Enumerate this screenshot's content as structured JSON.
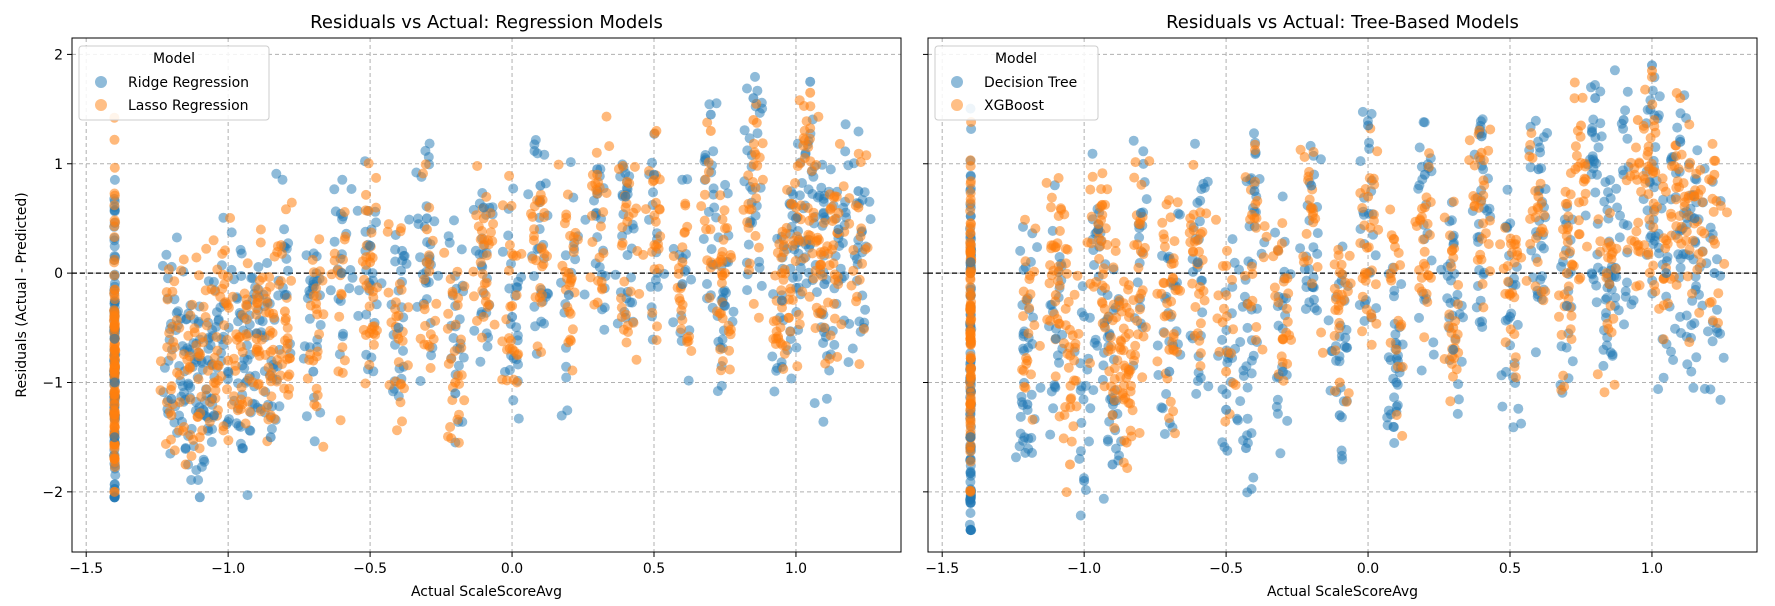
{
  "chart_data": [
    {
      "type": "scatter",
      "title": "Residuals vs Actual: Regression Models",
      "xlabel": "Actual ScaleScoreAvg",
      "ylabel": "Residuals (Actual - Predicted)",
      "xlim": [
        -1.55,
        1.37
      ],
      "ylim": [
        -2.55,
        2.15
      ],
      "xticks": [
        -1.5,
        -1.0,
        -0.5,
        0.0,
        0.5,
        1.0
      ],
      "xtick_labels": [
        "−1.5",
        "−1.0",
        "−0.5",
        "0.0",
        "0.5",
        "1.0"
      ],
      "yticks": [
        -2,
        -1,
        0,
        1,
        2
      ],
      "ytick_labels": [
        "−2",
        "−1",
        "0",
        "1",
        "2"
      ],
      "grid": true,
      "reference_line_y": 0,
      "legend": {
        "title": "Model",
        "position": "top-left"
      },
      "series": [
        {
          "name": "Ridge Regression",
          "color": "#1f77b4",
          "points": [
            [
              -1.4,
              -0.6
            ],
            [
              -1.4,
              -1.0
            ],
            [
              -1.4,
              -1.5
            ],
            [
              -1.4,
              -2.05
            ],
            [
              -1.2,
              -1.15
            ],
            [
              -1.15,
              -1.6
            ],
            [
              -1.1,
              -2.05
            ],
            [
              -1.05,
              -1.3
            ],
            [
              -1.0,
              -0.9
            ],
            [
              -0.95,
              -1.6
            ],
            [
              -0.9,
              -0.55
            ],
            [
              -0.85,
              -1.5
            ],
            [
              -0.8,
              -0.2
            ],
            [
              -0.7,
              -0.9
            ],
            [
              -0.6,
              0.0
            ],
            [
              -0.5,
              0.25
            ],
            [
              -0.4,
              -0.5
            ],
            [
              -0.3,
              0.5
            ],
            [
              -0.2,
              -1.1
            ],
            [
              -0.1,
              0.6
            ],
            [
              0.0,
              -0.4
            ],
            [
              0.1,
              0.8
            ],
            [
              0.2,
              -0.2
            ],
            [
              0.3,
              0.95
            ],
            [
              0.4,
              0.7
            ],
            [
              0.5,
              0.9
            ],
            [
              0.6,
              -0.1
            ],
            [
              0.7,
              1.45
            ],
            [
              0.75,
              -0.3
            ],
            [
              0.85,
              1.6
            ],
            [
              0.95,
              -0.25
            ],
            [
              1.0,
              0.5
            ],
            [
              1.05,
              1.75
            ],
            [
              1.1,
              -0.1
            ],
            [
              1.15,
              0.4
            ],
            [
              1.22,
              0.75
            ]
          ]
        },
        {
          "name": "Lasso Regression",
          "color": "#ff7f0e",
          "points": [
            [
              -1.4,
              -0.7
            ],
            [
              -1.4,
              -1.2
            ],
            [
              -1.4,
              -1.7
            ],
            [
              -1.4,
              -2.0
            ],
            [
              -1.2,
              -1.3
            ],
            [
              -1.15,
              -1.75
            ],
            [
              -1.1,
              -1.5
            ],
            [
              -1.05,
              -1.0
            ],
            [
              -1.0,
              -0.8
            ],
            [
              -0.95,
              -1.2
            ],
            [
              -0.9,
              -0.6
            ],
            [
              -0.85,
              -1.3
            ],
            [
              -0.8,
              -0.35
            ],
            [
              -0.7,
              -0.8
            ],
            [
              -0.6,
              -0.2
            ],
            [
              -0.5,
              0.1
            ],
            [
              -0.4,
              -0.6
            ],
            [
              -0.3,
              0.4
            ],
            [
              -0.2,
              -1.0
            ],
            [
              -0.1,
              0.5
            ],
            [
              0.0,
              -0.3
            ],
            [
              0.1,
              0.65
            ],
            [
              0.2,
              0.0
            ],
            [
              0.3,
              0.9
            ],
            [
              0.4,
              0.6
            ],
            [
              0.5,
              0.85
            ],
            [
              0.6,
              0.1
            ],
            [
              0.7,
              1.3
            ],
            [
              0.75,
              0.0
            ],
            [
              0.85,
              1.4
            ],
            [
              0.95,
              0.0
            ],
            [
              1.0,
              0.6
            ],
            [
              1.05,
              1.65
            ],
            [
              1.1,
              0.2
            ],
            [
              1.15,
              0.55
            ],
            [
              1.22,
              0.6
            ]
          ]
        }
      ]
    },
    {
      "type": "scatter",
      "title": "Residuals vs Actual: Tree-Based Models",
      "xlabel": "Actual ScaleScoreAvg",
      "ylabel": "",
      "xlim": [
        -1.55,
        1.37
      ],
      "ylim": [
        -2.55,
        2.15
      ],
      "xticks": [
        -1.5,
        -1.0,
        -0.5,
        0.0,
        0.5,
        1.0
      ],
      "xtick_labels": [
        "−1.5",
        "−1.0",
        "−0.5",
        "0.0",
        "0.5",
        "1.0"
      ],
      "yticks": [
        -2,
        -1,
        0,
        1,
        2
      ],
      "ytick_labels": [
        "",
        "",
        "",
        "",
        ""
      ],
      "grid": true,
      "reference_line_y": 0,
      "legend": {
        "title": "Model",
        "position": "top-left"
      },
      "series": [
        {
          "name": "Decision Tree",
          "color": "#1f77b4",
          "points": [
            [
              -1.4,
              0.1
            ],
            [
              -1.4,
              -1.5
            ],
            [
              -1.4,
              -2.1
            ],
            [
              -1.4,
              -2.35
            ],
            [
              -1.2,
              -1.2
            ],
            [
              -1.1,
              -0.6
            ],
            [
              -1.0,
              -1.9
            ],
            [
              -0.95,
              0.4
            ],
            [
              -0.9,
              -1.75
            ],
            [
              -0.8,
              0.55
            ],
            [
              -0.7,
              -0.9
            ],
            [
              -0.6,
              0.1
            ],
            [
              -0.5,
              -1.25
            ],
            [
              -0.43,
              -1.6
            ],
            [
              -0.4,
              0.75
            ],
            [
              -0.3,
              -0.9
            ],
            [
              -0.2,
              0.8
            ],
            [
              -0.1,
              -1.3
            ],
            [
              0.0,
              1.35
            ],
            [
              0.1,
              -1.0
            ],
            [
              0.2,
              0.9
            ],
            [
              0.3,
              -0.7
            ],
            [
              0.4,
              1.25
            ],
            [
              0.5,
              -0.4
            ],
            [
              0.6,
              0.95
            ],
            [
              0.7,
              -0.3
            ],
            [
              0.8,
              1.6
            ],
            [
              0.85,
              -0.1
            ],
            [
              0.9,
              1.4
            ],
            [
              1.0,
              1.9
            ],
            [
              1.05,
              0.0
            ],
            [
              1.1,
              1.2
            ],
            [
              1.15,
              0.5
            ],
            [
              1.22,
              0.0
            ]
          ]
        },
        {
          "name": "XGBoost",
          "color": "#ff7f0e",
          "points": [
            [
              -1.4,
              0.2
            ],
            [
              -1.4,
              -0.6
            ],
            [
              -1.4,
              -1.2
            ],
            [
              -1.4,
              -2.0
            ],
            [
              -1.2,
              -0.8
            ],
            [
              -1.1,
              -0.2
            ],
            [
              -1.05,
              -1.75
            ],
            [
              -0.95,
              0.45
            ],
            [
              -0.9,
              -1.3
            ],
            [
              -0.85,
              -1.55
            ],
            [
              -0.8,
              0.2
            ],
            [
              -0.7,
              -0.7
            ],
            [
              -0.6,
              0.3
            ],
            [
              -0.5,
              -0.9
            ],
            [
              -0.4,
              0.5
            ],
            [
              -0.3,
              -0.6
            ],
            [
              -0.2,
              0.6
            ],
            [
              -0.1,
              -1.0
            ],
            [
              0.0,
              0.7
            ],
            [
              0.1,
              -0.7
            ],
            [
              0.2,
              0.6
            ],
            [
              0.3,
              -0.5
            ],
            [
              0.4,
              1.1
            ],
            [
              0.5,
              -0.2
            ],
            [
              0.6,
              0.7
            ],
            [
              0.7,
              0.0
            ],
            [
              0.75,
              1.35
            ],
            [
              0.85,
              -0.1
            ],
            [
              0.95,
              1.4
            ],
            [
              1.0,
              1.85
            ],
            [
              1.05,
              0.3
            ],
            [
              1.1,
              1.6
            ],
            [
              1.15,
              0.7
            ],
            [
              1.22,
              0.9
            ]
          ]
        }
      ]
    }
  ]
}
